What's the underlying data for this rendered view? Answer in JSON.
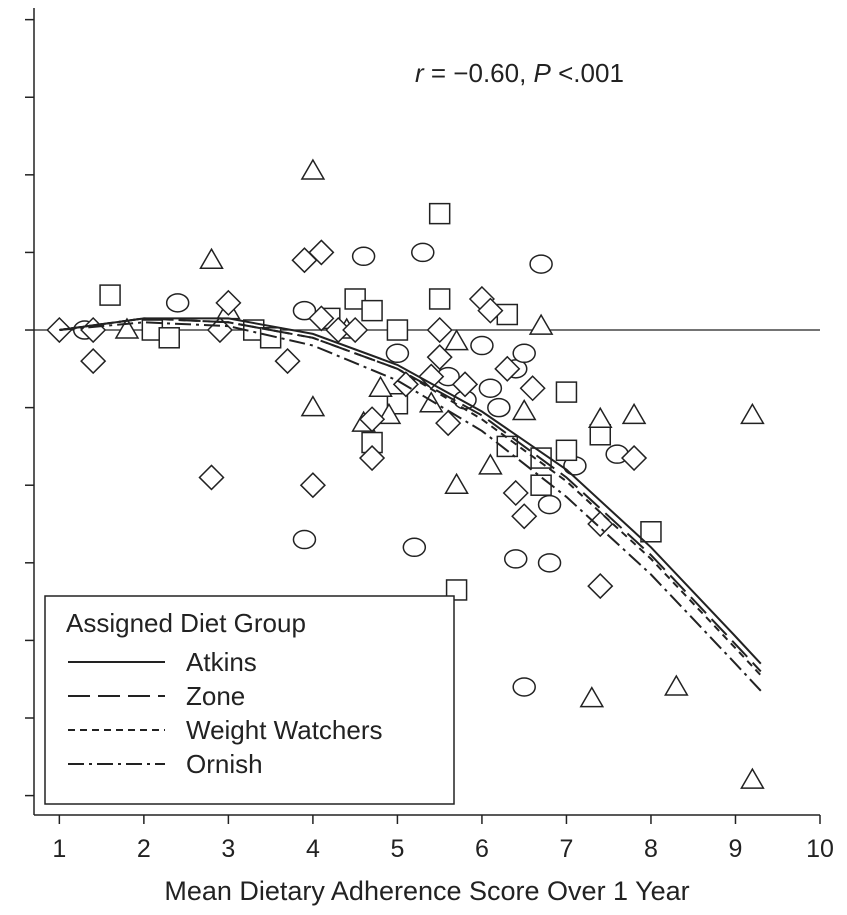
{
  "chart_data": {
    "type": "scatter",
    "title": "",
    "xlabel": "Mean Dietary Adherence Score Over 1 Year",
    "ylabel": "",
    "xlim": [
      0.7,
      10
    ],
    "ylim": [
      -12.5,
      8.3
    ],
    "x_ticks": [
      "1",
      "2",
      "3",
      "4",
      "5",
      "6",
      "7",
      "8",
      "9",
      "10"
    ],
    "y_tick_values": [
      8,
      6,
      4,
      2,
      0,
      -2,
      -4,
      -6,
      -8,
      -10,
      -12
    ],
    "reference_line_y": 0,
    "annotation": {
      "r_label": "r",
      "r_value": " = −0.60, ",
      "p_label": "P",
      "p_value": " <.001"
    },
    "grid": false,
    "legend": {
      "title": "Assigned Diet Group",
      "placement": "bottom-left",
      "entries": [
        {
          "name": "Atkins",
          "dash": "solid"
        },
        {
          "name": "Zone",
          "dash": "long-dash"
        },
        {
          "name": "Weight Watchers",
          "dash": "short-dash"
        },
        {
          "name": "Ornish",
          "dash": "dash-dot"
        }
      ]
    },
    "series": [
      {
        "name": "Atkins",
        "marker": "circle",
        "points": [
          [
            1.3,
            0.0
          ],
          [
            2.4,
            0.7
          ],
          [
            3.9,
            0.5
          ],
          [
            4.6,
            1.9
          ],
          [
            5.0,
            -0.6
          ],
          [
            5.3,
            2.0
          ],
          [
            5.6,
            -1.2
          ],
          [
            5.8,
            -1.8
          ],
          [
            6.0,
            -0.4
          ],
          [
            6.1,
            -1.5
          ],
          [
            6.2,
            -2.0
          ],
          [
            6.4,
            -1.0
          ],
          [
            6.5,
            -0.6
          ],
          [
            6.7,
            1.7
          ],
          [
            6.8,
            -4.5
          ],
          [
            7.1,
            -3.5
          ],
          [
            7.6,
            -3.2
          ],
          [
            3.9,
            -5.4
          ],
          [
            5.2,
            -5.6
          ],
          [
            6.4,
            -5.9
          ],
          [
            6.8,
            -6.0
          ],
          [
            6.5,
            -9.2
          ]
        ]
      },
      {
        "name": "Zone",
        "marker": "square",
        "points": [
          [
            1.6,
            0.9
          ],
          [
            2.1,
            0.0
          ],
          [
            2.3,
            -0.2
          ],
          [
            3.3,
            0.0
          ],
          [
            3.5,
            -0.2
          ],
          [
            4.2,
            0.3
          ],
          [
            4.5,
            0.8
          ],
          [
            4.7,
            0.5
          ],
          [
            5.0,
            0.0
          ],
          [
            5.5,
            3.0
          ],
          [
            5.5,
            0.8
          ],
          [
            6.3,
            0.4
          ],
          [
            4.7,
            -2.9
          ],
          [
            5.0,
            -1.9
          ],
          [
            6.3,
            -3.0
          ],
          [
            6.7,
            -3.3
          ],
          [
            6.7,
            -4.0
          ],
          [
            7.0,
            -1.6
          ],
          [
            7.0,
            -3.1
          ],
          [
            7.4,
            -2.7
          ],
          [
            8.0,
            -5.2
          ],
          [
            5.7,
            -6.7
          ]
        ]
      },
      {
        "name": "Weight Watchers",
        "marker": "triangle",
        "points": [
          [
            1.8,
            0.0
          ],
          [
            2.8,
            1.8
          ],
          [
            3.0,
            0.5
          ],
          [
            4.0,
            4.1
          ],
          [
            4.0,
            -2.0
          ],
          [
            4.4,
            0.0
          ],
          [
            4.8,
            -1.5
          ],
          [
            4.9,
            -2.2
          ],
          [
            5.4,
            -1.9
          ],
          [
            5.7,
            -0.3
          ],
          [
            6.1,
            -3.5
          ],
          [
            6.5,
            -2.1
          ],
          [
            6.7,
            0.1
          ],
          [
            4.6,
            -2.4
          ],
          [
            5.7,
            -4.0
          ],
          [
            7.4,
            -2.3
          ],
          [
            7.8,
            -2.2
          ],
          [
            9.2,
            -2.2
          ],
          [
            7.3,
            -9.5
          ],
          [
            8.3,
            -9.2
          ],
          [
            9.2,
            -11.6
          ]
        ]
      },
      {
        "name": "Ornish",
        "marker": "diamond",
        "points": [
          [
            1.0,
            0.0
          ],
          [
            1.4,
            -0.8
          ],
          [
            1.4,
            0.0
          ],
          [
            2.9,
            0.0
          ],
          [
            3.0,
            0.7
          ],
          [
            3.7,
            -0.8
          ],
          [
            3.9,
            1.8
          ],
          [
            4.1,
            2.0
          ],
          [
            4.1,
            0.3
          ],
          [
            4.3,
            0.0
          ],
          [
            4.5,
            0.0
          ],
          [
            4.7,
            -3.3
          ],
          [
            4.7,
            -2.3
          ],
          [
            5.1,
            -1.4
          ],
          [
            5.4,
            -1.2
          ],
          [
            5.5,
            0.0
          ],
          [
            5.5,
            -0.7
          ],
          [
            5.6,
            -2.4
          ],
          [
            5.8,
            -1.4
          ],
          [
            6.0,
            0.8
          ],
          [
            6.1,
            0.5
          ],
          [
            6.3,
            -1.0
          ],
          [
            6.6,
            -1.5
          ],
          [
            6.4,
            -4.2
          ],
          [
            6.5,
            -4.8
          ],
          [
            7.4,
            -5.0
          ],
          [
            7.8,
            -3.3
          ],
          [
            4.0,
            -4.0
          ],
          [
            2.8,
            -3.8
          ],
          [
            7.4,
            -6.6
          ]
        ]
      }
    ],
    "fit_curves": [
      {
        "name": "Atkins",
        "points": [
          [
            1.0,
            0.0
          ],
          [
            2.0,
            0.3
          ],
          [
            3.0,
            0.3
          ],
          [
            4.0,
            -0.1
          ],
          [
            5.0,
            -0.9
          ],
          [
            6.0,
            -2.1
          ],
          [
            7.0,
            -3.6
          ],
          [
            8.0,
            -5.6
          ],
          [
            9.0,
            -7.9
          ],
          [
            9.3,
            -8.6
          ]
        ]
      },
      {
        "name": "Zone",
        "points": [
          [
            1.0,
            0.0
          ],
          [
            2.0,
            0.3
          ],
          [
            3.0,
            0.2
          ],
          [
            4.0,
            -0.2
          ],
          [
            5.0,
            -1.0
          ],
          [
            6.0,
            -2.2
          ],
          [
            7.0,
            -3.8
          ],
          [
            8.0,
            -5.8
          ],
          [
            9.0,
            -8.1
          ],
          [
            9.3,
            -8.8
          ]
        ]
      },
      {
        "name": "Weight Watchers",
        "points": [
          [
            1.0,
            0.0
          ],
          [
            2.0,
            0.3
          ],
          [
            3.0,
            0.2
          ],
          [
            4.0,
            -0.2
          ],
          [
            5.0,
            -1.0
          ],
          [
            6.0,
            -2.3
          ],
          [
            7.0,
            -3.9
          ],
          [
            8.0,
            -5.9
          ],
          [
            9.0,
            -8.2
          ],
          [
            9.3,
            -8.9
          ]
        ]
      },
      {
        "name": "Ornish",
        "points": [
          [
            1.0,
            0.0
          ],
          [
            2.0,
            0.2
          ],
          [
            3.0,
            0.1
          ],
          [
            4.0,
            -0.4
          ],
          [
            5.0,
            -1.3
          ],
          [
            6.0,
            -2.6
          ],
          [
            7.0,
            -4.3
          ],
          [
            8.0,
            -6.3
          ],
          [
            9.0,
            -8.6
          ],
          [
            9.3,
            -9.3
          ]
        ]
      }
    ]
  }
}
